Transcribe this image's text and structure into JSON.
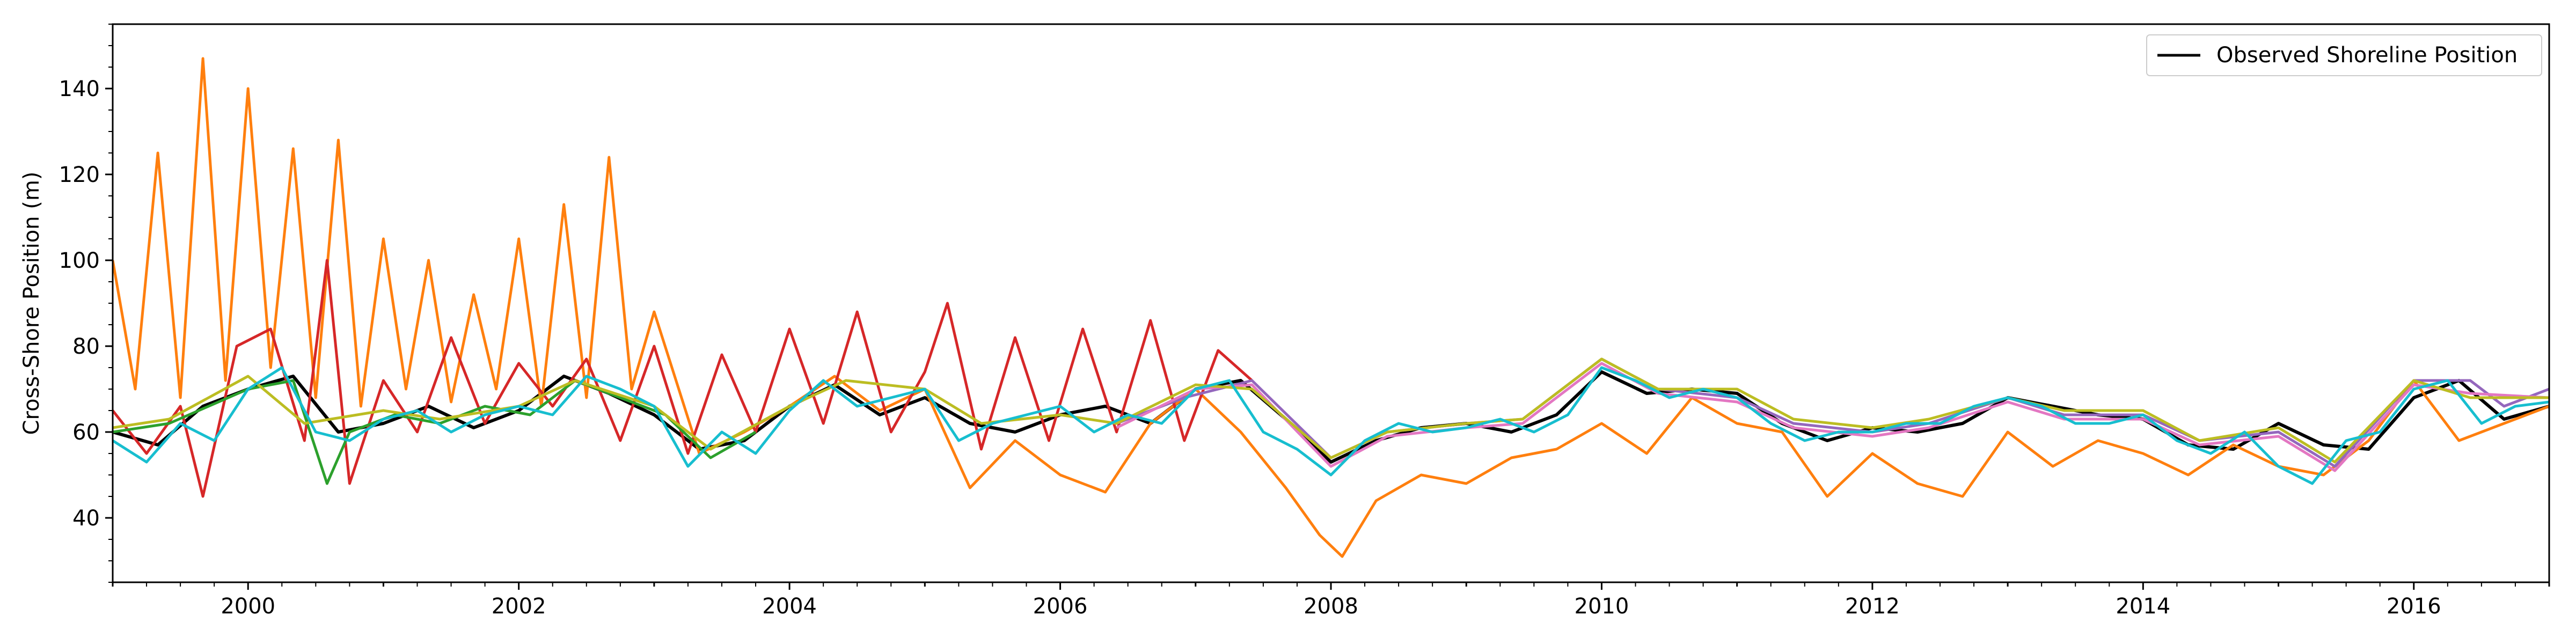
{
  "chart_data": {
    "type": "line",
    "title": "",
    "xlabel": "",
    "ylabel": "Cross-Shore Position (m)",
    "xlim": [
      "1999-01-01",
      "2017-01-01"
    ],
    "ylim": [
      25,
      155
    ],
    "x_ticks": [
      "2000",
      "2002",
      "2004",
      "2006",
      "2008",
      "2010",
      "2012",
      "2014",
      "2016"
    ],
    "y_ticks": [
      40,
      60,
      80,
      100,
      120,
      140
    ],
    "grid": false,
    "legend": {
      "position": "top-right",
      "entries": [
        "Observed Shoreline Position"
      ]
    },
    "series": [
      {
        "name": "Observed Shoreline Position",
        "color": "#000000",
        "x": [
          "1999-01",
          "1999-05",
          "1999-09",
          "2000-01",
          "2000-05",
          "2000-09",
          "2001-01",
          "2001-05",
          "2001-09",
          "2002-01",
          "2002-05",
          "2002-09",
          "2003-01",
          "2003-05",
          "2003-09",
          "2004-01",
          "2004-05",
          "2004-09",
          "2005-01",
          "2005-05",
          "2005-09",
          "2006-01",
          "2006-05",
          "2006-09",
          "2007-01",
          "2007-05",
          "2007-09",
          "2008-01",
          "2008-05",
          "2008-09",
          "2009-01",
          "2009-05",
          "2009-09",
          "2010-01",
          "2010-05",
          "2010-09",
          "2011-01",
          "2011-05",
          "2011-09",
          "2012-01",
          "2012-05",
          "2012-09",
          "2013-01",
          "2013-05",
          "2013-09",
          "2014-01",
          "2014-05",
          "2014-09",
          "2015-01",
          "2015-05",
          "2015-09",
          "2016-01",
          "2016-05",
          "2016-09",
          "2017-01"
        ],
        "y": [
          60,
          57,
          66,
          70,
          73,
          60,
          62,
          66,
          61,
          65,
          73,
          69,
          64,
          56,
          58,
          66,
          71,
          64,
          68,
          62,
          60,
          64,
          66,
          62,
          70,
          72,
          63,
          53,
          58,
          61,
          62,
          60,
          64,
          74,
          69,
          70,
          69,
          62,
          58,
          61,
          60,
          62,
          68,
          66,
          64,
          63,
          57,
          56,
          62,
          57,
          56,
          68,
          72,
          63,
          66
        ]
      },
      {
        "name": "",
        "color": "#ff7f0e",
        "x": [
          "1999-01",
          "1999-03",
          "1999-05",
          "1999-07",
          "1999-09",
          "1999-11",
          "2000-01",
          "2000-03",
          "2000-05",
          "2000-07",
          "2000-09",
          "2000-11",
          "2001-01",
          "2001-03",
          "2001-05",
          "2001-07",
          "2001-09",
          "2001-11",
          "2002-01",
          "2002-03",
          "2002-05",
          "2002-07",
          "2002-09",
          "2002-11",
          "2003-01",
          "2003-05",
          "2003-09",
          "2004-01",
          "2004-05",
          "2004-09",
          "2005-01",
          "2005-05",
          "2005-09",
          "2006-01",
          "2006-05",
          "2006-09",
          "2007-01",
          "2007-05",
          "2007-09",
          "2007-12",
          "2008-02",
          "2008-05",
          "2008-09",
          "2009-01",
          "2009-05",
          "2009-09",
          "2010-01",
          "2010-05",
          "2010-09",
          "2011-01",
          "2011-05",
          "2011-09",
          "2012-01",
          "2012-05",
          "2012-09",
          "2013-01",
          "2013-05",
          "2013-09",
          "2014-01",
          "2014-05",
          "2014-09",
          "2015-01",
          "2015-05",
          "2015-09",
          "2016-01",
          "2016-05",
          "2016-09",
          "2017-01"
        ],
        "y": [
          100,
          70,
          125,
          68,
          147,
          72,
          140,
          75,
          126,
          68,
          128,
          66,
          105,
          70,
          100,
          67,
          92,
          70,
          105,
          66,
          113,
          68,
          124,
          70,
          88,
          55,
          60,
          66,
          73,
          65,
          70,
          47,
          58,
          50,
          46,
          62,
          70,
          60,
          47,
          36,
          31,
          44,
          50,
          48,
          54,
          56,
          62,
          55,
          68,
          62,
          60,
          45,
          55,
          48,
          45,
          60,
          52,
          58,
          55,
          50,
          57,
          52,
          50,
          58,
          72,
          58,
          62,
          66
        ]
      },
      {
        "name": "",
        "color": "#d62728",
        "x": [
          "1999-01",
          "1999-04",
          "1999-07",
          "1999-09",
          "1999-12",
          "2000-03",
          "2000-06",
          "2000-08",
          "2000-10",
          "2001-01",
          "2001-04",
          "2001-07",
          "2001-10",
          "2002-01",
          "2002-04",
          "2002-07",
          "2002-10",
          "2003-01",
          "2003-04",
          "2003-07",
          "2003-10",
          "2004-01",
          "2004-04",
          "2004-07",
          "2004-10",
          "2005-01",
          "2005-03",
          "2005-06",
          "2005-09",
          "2005-12",
          "2006-03",
          "2006-06",
          "2006-09",
          "2006-12",
          "2007-03",
          "2007-06"
        ],
        "y": [
          65,
          55,
          66,
          45,
          80,
          84,
          58,
          100,
          48,
          72,
          60,
          82,
          62,
          76,
          66,
          77,
          58,
          80,
          55,
          78,
          60,
          84,
          62,
          88,
          60,
          74,
          90,
          56,
          82,
          58,
          84,
          60,
          86,
          58,
          79,
          72
        ]
      },
      {
        "name": "",
        "color": "#2ca02c",
        "x": [
          "1999-01",
          "1999-06",
          "2000-01",
          "2000-05",
          "2000-08",
          "2000-10",
          "2001-02",
          "2001-06",
          "2001-10",
          "2002-02",
          "2002-06",
          "2002-10",
          "2003-02",
          "2003-06",
          "2003-10"
        ],
        "y": [
          60,
          62,
          70,
          72,
          48,
          60,
          64,
          62,
          66,
          64,
          72,
          68,
          64,
          54,
          60
        ]
      },
      {
        "name": "",
        "color": "#9467bd",
        "x": [
          "2006-06",
          "2006-12",
          "2007-06",
          "2008-01",
          "2008-06",
          "2009-01",
          "2009-06",
          "2010-01",
          "2010-06",
          "2011-01",
          "2011-06",
          "2012-01",
          "2012-06",
          "2013-01",
          "2013-06",
          "2014-01",
          "2014-06",
          "2015-01",
          "2015-06",
          "2016-01",
          "2016-06",
          "2016-09",
          "2017-01"
        ],
        "y": [
          62,
          68,
          72,
          54,
          60,
          62,
          63,
          77,
          70,
          68,
          62,
          60,
          62,
          68,
          64,
          64,
          58,
          60,
          52,
          72,
          72,
          66,
          70
        ]
      },
      {
        "name": "",
        "color": "#e377c2",
        "x": [
          "2006-06",
          "2007-01",
          "2007-06",
          "2008-01",
          "2008-06",
          "2009-01",
          "2009-06",
          "2010-01",
          "2010-06",
          "2011-01",
          "2011-06",
          "2012-01",
          "2012-06",
          "2013-01",
          "2013-06",
          "2014-01",
          "2014-06",
          "2015-01",
          "2015-06",
          "2016-01",
          "2016-06",
          "2017-01"
        ],
        "y": [
          61,
          70,
          71,
          52,
          59,
          61,
          62,
          76,
          69,
          67,
          61,
          59,
          61,
          67,
          63,
          63,
          57,
          59,
          51,
          71,
          69,
          68
        ]
      },
      {
        "name": "",
        "color": "#bcbd22",
        "x": [
          "1999-01",
          "1999-06",
          "2000-01",
          "2000-06",
          "2001-01",
          "2001-06",
          "2002-01",
          "2002-06",
          "2003-01",
          "2003-06",
          "2004-01",
          "2004-06",
          "2005-01",
          "2005-06",
          "2006-01",
          "2006-06",
          "2007-01",
          "2007-06",
          "2008-01",
          "2008-06",
          "2009-01",
          "2009-06",
          "2010-01",
          "2010-06",
          "2011-01",
          "2011-06",
          "2012-01",
          "2012-06",
          "2013-01",
          "2013-06",
          "2014-01",
          "2014-06",
          "2015-01",
          "2015-06",
          "2016-01",
          "2016-06",
          "2017-01"
        ],
        "y": [
          61,
          63,
          73,
          62,
          65,
          63,
          66,
          72,
          66,
          56,
          66,
          72,
          70,
          62,
          64,
          62,
          71,
          70,
          54,
          60,
          62,
          63,
          77,
          70,
          70,
          63,
          61,
          63,
          68,
          65,
          65,
          58,
          61,
          53,
          72,
          68,
          68
        ]
      },
      {
        "name": "",
        "color": "#17becf",
        "x": [
          "1999-01",
          "1999-04",
          "1999-07",
          "1999-10",
          "2000-01",
          "2000-04",
          "2000-07",
          "2000-10",
          "2001-01",
          "2001-04",
          "2001-07",
          "2001-10",
          "2002-01",
          "2002-04",
          "2002-07",
          "2002-10",
          "2003-01",
          "2003-04",
          "2003-07",
          "2003-10",
          "2004-01",
          "2004-04",
          "2004-07",
          "2004-10",
          "2005-01",
          "2005-04",
          "2005-07",
          "2005-10",
          "2006-01",
          "2006-04",
          "2006-07",
          "2006-10",
          "2007-01",
          "2007-04",
          "2007-07",
          "2007-10",
          "2008-01",
          "2008-04",
          "2008-07",
          "2008-10",
          "2009-01",
          "2009-04",
          "2009-07",
          "2009-10",
          "2010-01",
          "2010-04",
          "2010-07",
          "2010-10",
          "2011-01",
          "2011-04",
          "2011-07",
          "2011-10",
          "2012-01",
          "2012-04",
          "2012-07",
          "2012-10",
          "2013-01",
          "2013-04",
          "2013-07",
          "2013-10",
          "2014-01",
          "2014-04",
          "2014-07",
          "2014-10",
          "2015-01",
          "2015-04",
          "2015-07",
          "2015-10",
          "2016-01",
          "2016-04",
          "2016-07",
          "2016-10",
          "2017-01"
        ],
        "y": [
          58,
          53,
          62,
          58,
          70,
          75,
          60,
          58,
          63,
          65,
          60,
          64,
          66,
          64,
          73,
          70,
          66,
          52,
          60,
          55,
          65,
          72,
          66,
          68,
          70,
          58,
          62,
          64,
          66,
          60,
          64,
          62,
          70,
          72,
          60,
          56,
          50,
          58,
          62,
          60,
          61,
          63,
          60,
          64,
          75,
          72,
          68,
          70,
          68,
          62,
          58,
          60,
          60,
          62,
          62,
          66,
          68,
          66,
          62,
          62,
          64,
          58,
          55,
          60,
          52,
          48,
          58,
          60,
          70,
          72,
          62,
          66,
          67
        ]
      }
    ]
  }
}
